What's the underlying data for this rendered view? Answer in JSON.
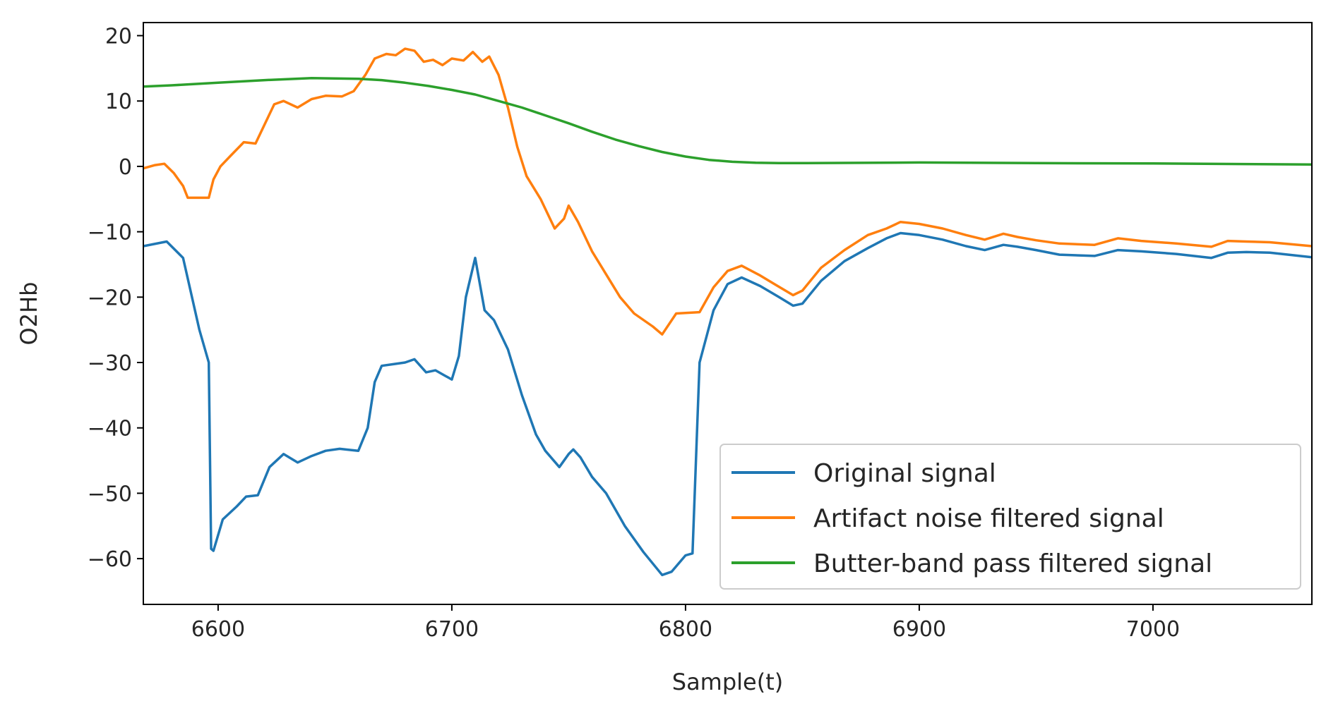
{
  "chart_data": {
    "type": "line",
    "xlabel": "Sample(t)",
    "ylabel": "O2Hb",
    "xlim": [
      6568,
      7068
    ],
    "ylim": [
      -67,
      22
    ],
    "x_ticks": [
      6600,
      6700,
      6800,
      6900,
      7000
    ],
    "y_ticks": [
      20,
      10,
      0,
      -10,
      -20,
      -30,
      -40,
      -50,
      -60
    ],
    "grid": false,
    "legend_position": "bottom-right",
    "series": [
      {
        "name": "Original signal",
        "color": "#1f77b4",
        "points": [
          [
            6568,
            -12.2
          ],
          [
            6578,
            -11.5
          ],
          [
            6585,
            -14
          ],
          [
            6592,
            -25
          ],
          [
            6596,
            -30
          ],
          [
            6597,
            -58.5
          ],
          [
            6598,
            -58.8
          ],
          [
            6602,
            -54
          ],
          [
            6608,
            -52
          ],
          [
            6612,
            -50.5
          ],
          [
            6617,
            -50.3
          ],
          [
            6622,
            -46
          ],
          [
            6628,
            -44
          ],
          [
            6634,
            -45.3
          ],
          [
            6640,
            -44.3
          ],
          [
            6646,
            -43.5
          ],
          [
            6652,
            -43.2
          ],
          [
            6660,
            -43.5
          ],
          [
            6664,
            -40
          ],
          [
            6667,
            -33
          ],
          [
            6670,
            -30.5
          ],
          [
            6676,
            -30.2
          ],
          [
            6680,
            -30
          ],
          [
            6684,
            -29.5
          ],
          [
            6689,
            -31.5
          ],
          [
            6693,
            -31.2
          ],
          [
            6697,
            -32
          ],
          [
            6700,
            -32.6
          ],
          [
            6703,
            -29
          ],
          [
            6706,
            -20
          ],
          [
            6710,
            -14
          ],
          [
            6714,
            -22
          ],
          [
            6718,
            -23.5
          ],
          [
            6724,
            -28
          ],
          [
            6730,
            -35
          ],
          [
            6736,
            -41
          ],
          [
            6740,
            -43.5
          ],
          [
            6746,
            -46
          ],
          [
            6750,
            -44
          ],
          [
            6752,
            -43.3
          ],
          [
            6755,
            -44.5
          ],
          [
            6760,
            -47.5
          ],
          [
            6766,
            -50
          ],
          [
            6774,
            -55
          ],
          [
            6782,
            -59
          ],
          [
            6790,
            -62.5
          ],
          [
            6794,
            -62
          ],
          [
            6800,
            -59.5
          ],
          [
            6803,
            -59.2
          ],
          [
            6806,
            -30
          ],
          [
            6812,
            -22
          ],
          [
            6818,
            -18
          ],
          [
            6824,
            -17
          ],
          [
            6832,
            -18.3
          ],
          [
            6840,
            -20
          ],
          [
            6846,
            -21.3
          ],
          [
            6850,
            -21
          ],
          [
            6858,
            -17.5
          ],
          [
            6868,
            -14.5
          ],
          [
            6878,
            -12.5
          ],
          [
            6886,
            -11
          ],
          [
            6892,
            -10.2
          ],
          [
            6900,
            -10.5
          ],
          [
            6910,
            -11.2
          ],
          [
            6920,
            -12.2
          ],
          [
            6928,
            -12.8
          ],
          [
            6936,
            -12
          ],
          [
            6942,
            -12.3
          ],
          [
            6950,
            -12.8
          ],
          [
            6960,
            -13.5
          ],
          [
            6975,
            -13.7
          ],
          [
            6985,
            -12.8
          ],
          [
            6995,
            -13
          ],
          [
            7010,
            -13.4
          ],
          [
            7025,
            -14
          ],
          [
            7032,
            -13.2
          ],
          [
            7040,
            -13.1
          ],
          [
            7050,
            -13.2
          ],
          [
            7068,
            -13.9
          ]
        ]
      },
      {
        "name": "Artifact noise filtered signal",
        "color": "#ff7f0e",
        "points": [
          [
            6568,
            -0.3
          ],
          [
            6573,
            0.2
          ],
          [
            6577,
            0.4
          ],
          [
            6581,
            -1
          ],
          [
            6585,
            -3
          ],
          [
            6587,
            -4.8
          ],
          [
            6596,
            -4.8
          ],
          [
            6598,
            -2
          ],
          [
            6601,
            0
          ],
          [
            6605,
            1.5
          ],
          [
            6611,
            3.7
          ],
          [
            6616,
            3.5
          ],
          [
            6620,
            6.5
          ],
          [
            6624,
            9.5
          ],
          [
            6628,
            10
          ],
          [
            6634,
            9
          ],
          [
            6640,
            10.3
          ],
          [
            6646,
            10.8
          ],
          [
            6653,
            10.7
          ],
          [
            6658,
            11.5
          ],
          [
            6663,
            14
          ],
          [
            6667,
            16.5
          ],
          [
            6672,
            17.2
          ],
          [
            6676,
            17
          ],
          [
            6680,
            18
          ],
          [
            6684,
            17.7
          ],
          [
            6688,
            16
          ],
          [
            6692,
            16.3
          ],
          [
            6696,
            15.5
          ],
          [
            6700,
            16.5
          ],
          [
            6705,
            16.2
          ],
          [
            6709,
            17.5
          ],
          [
            6713,
            16
          ],
          [
            6716,
            16.8
          ],
          [
            6720,
            14
          ],
          [
            6724,
            9
          ],
          [
            6728,
            3
          ],
          [
            6732,
            -1.5
          ],
          [
            6738,
            -5
          ],
          [
            6744,
            -9.5
          ],
          [
            6748,
            -8
          ],
          [
            6750,
            -6
          ],
          [
            6754,
            -8.5
          ],
          [
            6760,
            -13
          ],
          [
            6766,
            -16.5
          ],
          [
            6772,
            -20
          ],
          [
            6778,
            -22.5
          ],
          [
            6786,
            -24.5
          ],
          [
            6790,
            -25.7
          ],
          [
            6796,
            -22.5
          ],
          [
            6806,
            -22.3
          ],
          [
            6812,
            -18.5
          ],
          [
            6818,
            -16
          ],
          [
            6824,
            -15.2
          ],
          [
            6832,
            -16.7
          ],
          [
            6838,
            -18
          ],
          [
            6846,
            -19.7
          ],
          [
            6850,
            -19
          ],
          [
            6858,
            -15.5
          ],
          [
            6868,
            -12.8
          ],
          [
            6878,
            -10.5
          ],
          [
            6886,
            -9.5
          ],
          [
            6892,
            -8.5
          ],
          [
            6900,
            -8.8
          ],
          [
            6910,
            -9.5
          ],
          [
            6920,
            -10.5
          ],
          [
            6928,
            -11.2
          ],
          [
            6936,
            -10.3
          ],
          [
            6942,
            -10.8
          ],
          [
            6950,
            -11.3
          ],
          [
            6960,
            -11.8
          ],
          [
            6975,
            -12
          ],
          [
            6985,
            -11
          ],
          [
            6995,
            -11.4
          ],
          [
            7010,
            -11.8
          ],
          [
            7025,
            -12.3
          ],
          [
            7032,
            -11.4
          ],
          [
            7040,
            -11.5
          ],
          [
            7050,
            -11.6
          ],
          [
            7068,
            -12.2
          ]
        ]
      },
      {
        "name": "Butter-band pass filtered signal",
        "color": "#2ca02c",
        "points": [
          [
            6568,
            12.2
          ],
          [
            6580,
            12.4
          ],
          [
            6600,
            12.8
          ],
          [
            6620,
            13.2
          ],
          [
            6640,
            13.5
          ],
          [
            6660,
            13.4
          ],
          [
            6670,
            13.2
          ],
          [
            6680,
            12.8
          ],
          [
            6690,
            12.3
          ],
          [
            6700,
            11.7
          ],
          [
            6710,
            11
          ],
          [
            6720,
            10
          ],
          [
            6730,
            9
          ],
          [
            6740,
            7.8
          ],
          [
            6750,
            6.6
          ],
          [
            6760,
            5.3
          ],
          [
            6770,
            4.1
          ],
          [
            6780,
            3.1
          ],
          [
            6790,
            2.2
          ],
          [
            6800,
            1.5
          ],
          [
            6810,
            1
          ],
          [
            6820,
            0.7
          ],
          [
            6830,
            0.55
          ],
          [
            6840,
            0.5
          ],
          [
            6850,
            0.5
          ],
          [
            6900,
            0.6
          ],
          [
            6950,
            0.5
          ],
          [
            7000,
            0.45
          ],
          [
            7068,
            0.3
          ]
        ]
      }
    ]
  }
}
